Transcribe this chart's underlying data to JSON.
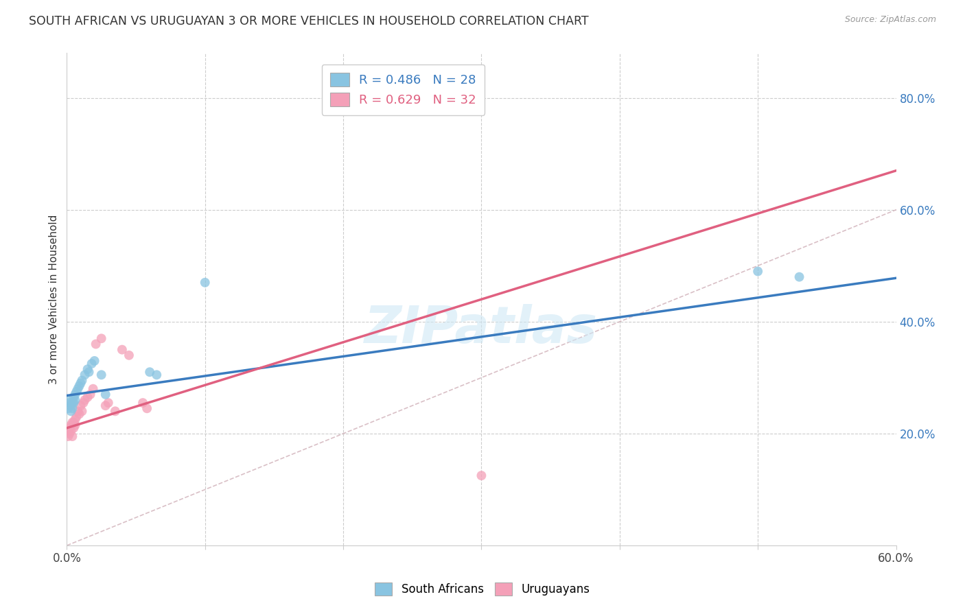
{
  "title": "SOUTH AFRICAN VS URUGUAYAN 3 OR MORE VEHICLES IN HOUSEHOLD CORRELATION CHART",
  "source": "Source: ZipAtlas.com",
  "ylabel": "3 or more Vehicles in Household",
  "xlim": [
    0,
    0.6
  ],
  "ylim": [
    0,
    0.88
  ],
  "xtick_positions": [
    0.0,
    0.1,
    0.2,
    0.3,
    0.4,
    0.5,
    0.6
  ],
  "xtick_labels_shown": {
    "0.0": "0.0%",
    "0.6": "60.0%"
  },
  "yticks_right": [
    0.2,
    0.4,
    0.6,
    0.8
  ],
  "ytick_right_labels": [
    "20.0%",
    "40.0%",
    "60.0%",
    "80.0%"
  ],
  "blue_color": "#89c4e1",
  "pink_color": "#f4a0b8",
  "blue_line_color": "#3a7bbf",
  "pink_line_color": "#e06080",
  "diagonal_color": "#d0b0b8",
  "watermark_text": "ZIPatlas",
  "legend_r_blue": "R = 0.486",
  "legend_n_blue": "N = 28",
  "legend_r_pink": "R = 0.629",
  "legend_n_pink": "N = 32",
  "south_african_x": [
    0.001,
    0.002,
    0.002,
    0.003,
    0.003,
    0.004,
    0.004,
    0.005,
    0.005,
    0.006,
    0.006,
    0.007,
    0.008,
    0.009,
    0.01,
    0.011,
    0.013,
    0.015,
    0.016,
    0.018,
    0.02,
    0.025,
    0.028,
    0.06,
    0.065,
    0.1,
    0.5,
    0.53
  ],
  "south_african_y": [
    0.245,
    0.255,
    0.26,
    0.25,
    0.24,
    0.255,
    0.245,
    0.265,
    0.255,
    0.26,
    0.27,
    0.275,
    0.28,
    0.285,
    0.29,
    0.295,
    0.305,
    0.315,
    0.31,
    0.325,
    0.33,
    0.305,
    0.27,
    0.31,
    0.305,
    0.47,
    0.49,
    0.48
  ],
  "uruguayan_x": [
    0.001,
    0.001,
    0.002,
    0.002,
    0.003,
    0.003,
    0.004,
    0.004,
    0.005,
    0.005,
    0.006,
    0.006,
    0.007,
    0.008,
    0.009,
    0.01,
    0.011,
    0.012,
    0.013,
    0.015,
    0.017,
    0.019,
    0.021,
    0.025,
    0.028,
    0.03,
    0.035,
    0.04,
    0.045,
    0.055,
    0.058,
    0.3
  ],
  "uruguayan_y": [
    0.205,
    0.195,
    0.21,
    0.2,
    0.215,
    0.205,
    0.22,
    0.195,
    0.22,
    0.21,
    0.215,
    0.225,
    0.23,
    0.24,
    0.235,
    0.25,
    0.24,
    0.255,
    0.26,
    0.265,
    0.27,
    0.28,
    0.36,
    0.37,
    0.25,
    0.255,
    0.24,
    0.35,
    0.34,
    0.255,
    0.245,
    0.125
  ],
  "blue_trend_x0": 0.0,
  "blue_trend_y0": 0.268,
  "blue_trend_x1": 0.6,
  "blue_trend_y1": 0.478,
  "pink_trend_x0": 0.0,
  "pink_trend_y0": 0.21,
  "pink_trend_x1": 0.6,
  "pink_trend_y1": 0.67,
  "bg_color": "#ffffff",
  "grid_color": "#cccccc",
  "marker_size": 100
}
